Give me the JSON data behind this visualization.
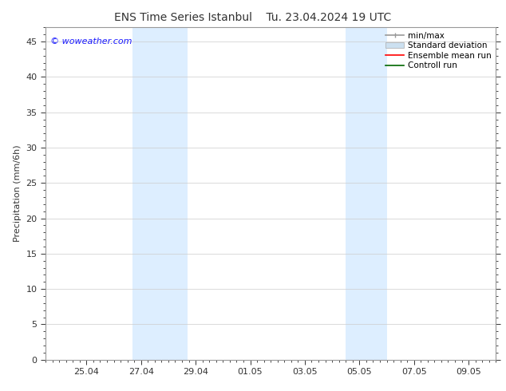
{
  "title_left": "ENS Time Series Istanbul",
  "title_right": "Tu. 23.04.2024 19 UTC",
  "ylabel": "Precipitation (mm/6h)",
  "watermark": "© woweather.com",
  "watermark_color": "#1a1aff",
  "ylim": [
    0,
    47
  ],
  "yticks": [
    0,
    5,
    10,
    15,
    20,
    25,
    30,
    35,
    40,
    45
  ],
  "background_color": "#ffffff",
  "plot_bg_color": "#ffffff",
  "shaded_bands": [
    {
      "x_start": 3.2,
      "x_end": 5.2,
      "color": "#ddeeff"
    },
    {
      "x_start": 11.0,
      "x_end": 12.5,
      "color": "#ddeeff"
    }
  ],
  "xlim": [
    0,
    16.5
  ],
  "x_tick_labels": [
    "25.04",
    "27.04",
    "29.04",
    "01.05",
    "03.05",
    "05.05",
    "07.05",
    "09.05"
  ],
  "x_tick_positions": [
    1.5,
    3.5,
    5.5,
    7.5,
    9.5,
    11.5,
    13.5,
    15.5
  ],
  "x_minor_step": 0.25,
  "legend_items": [
    {
      "label": "min/max",
      "color": "#999999",
      "lw": 1.2
    },
    {
      "label": "Standard deviation",
      "color": "#cce0f0",
      "lw": 8
    },
    {
      "label": "Ensemble mean run",
      "color": "#ff0000",
      "lw": 1.2
    },
    {
      "label": "Controll run",
      "color": "#006600",
      "lw": 1.2
    }
  ],
  "title_fontsize": 10,
  "label_fontsize": 8,
  "tick_fontsize": 8,
  "watermark_fontsize": 8,
  "legend_fontsize": 7.5,
  "grid_color": "#cccccc",
  "spine_color": "#999999",
  "tick_color": "#333333"
}
